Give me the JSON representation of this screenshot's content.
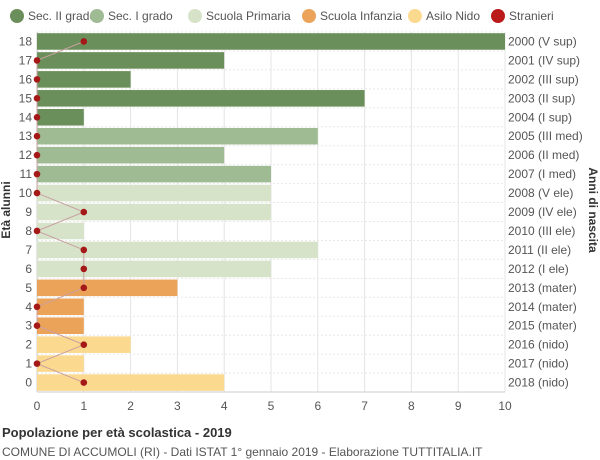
{
  "chart_data": {
    "type": "bar",
    "orientation": "horizontal",
    "legend": {
      "placement": "top",
      "entries": [
        {
          "label": "Sec. II grado",
          "color": "#6b8f5a"
        },
        {
          "label": "Sec. I grado",
          "color": "#9fbb93"
        },
        {
          "label": "Scuola Primaria",
          "color": "#d6e3c9"
        },
        {
          "label": "Scuola Infanzia",
          "color": "#eba35a"
        },
        {
          "label": "Asilo Nido",
          "color": "#fbd98f"
        },
        {
          "label": "Stranieri",
          "color": "#bb1a1a"
        }
      ]
    },
    "ylabel_left": "Età alunni",
    "ylabel_right": "Anni di nascita",
    "xlim": [
      0,
      10
    ],
    "xticks": [
      0,
      1,
      2,
      3,
      4,
      5,
      6,
      7,
      8,
      9,
      10
    ],
    "grid": true,
    "rows": [
      {
        "age": "18",
        "birth": "2000 (V sup)",
        "value": 10,
        "stranieri": 1,
        "level": 0
      },
      {
        "age": "17",
        "birth": "2001 (IV sup)",
        "value": 4,
        "stranieri": 0,
        "level": 0
      },
      {
        "age": "16",
        "birth": "2002 (III sup)",
        "value": 2,
        "stranieri": 0,
        "level": 0
      },
      {
        "age": "15",
        "birth": "2003 (II sup)",
        "value": 7,
        "stranieri": 0,
        "level": 0
      },
      {
        "age": "14",
        "birth": "2004 (I sup)",
        "value": 1,
        "stranieri": 0,
        "level": 0
      },
      {
        "age": "13",
        "birth": "2005 (III med)",
        "value": 6,
        "stranieri": 0,
        "level": 1
      },
      {
        "age": "12",
        "birth": "2006 (II med)",
        "value": 4,
        "stranieri": 0,
        "level": 1
      },
      {
        "age": "11",
        "birth": "2007 (I med)",
        "value": 5,
        "stranieri": 0,
        "level": 1
      },
      {
        "age": "10",
        "birth": "2008 (V ele)",
        "value": 5,
        "stranieri": 0,
        "level": 2
      },
      {
        "age": "9",
        "birth": "2009 (IV ele)",
        "value": 5,
        "stranieri": 1,
        "level": 2
      },
      {
        "age": "8",
        "birth": "2010 (III ele)",
        "value": 1,
        "stranieri": 0,
        "level": 2
      },
      {
        "age": "7",
        "birth": "2011 (II ele)",
        "value": 6,
        "stranieri": 1,
        "level": 2
      },
      {
        "age": "6",
        "birth": "2012 (I ele)",
        "value": 5,
        "stranieri": 1,
        "level": 2
      },
      {
        "age": "5",
        "birth": "2013 (mater)",
        "value": 3,
        "stranieri": 1,
        "level": 3
      },
      {
        "age": "4",
        "birth": "2014 (mater)",
        "value": 1,
        "stranieri": 0,
        "level": 3
      },
      {
        "age": "3",
        "birth": "2015 (mater)",
        "value": 1,
        "stranieri": 0,
        "level": 3
      },
      {
        "age": "2",
        "birth": "2016 (nido)",
        "value": 2,
        "stranieri": 1,
        "level": 4
      },
      {
        "age": "1",
        "birth": "2017 (nido)",
        "value": 1,
        "stranieri": 0,
        "level": 4
      },
      {
        "age": "0",
        "birth": "2018 (nido)",
        "value": 4,
        "stranieri": 1,
        "level": 4
      }
    ]
  },
  "footer": {
    "title": "Popolazione per età scolastica - 2019",
    "subtitle": "COMUNE DI ACCUMOLI (RI) - Dati ISTAT 1° gennaio 2019 - Elaborazione TUTTITALIA.IT"
  }
}
